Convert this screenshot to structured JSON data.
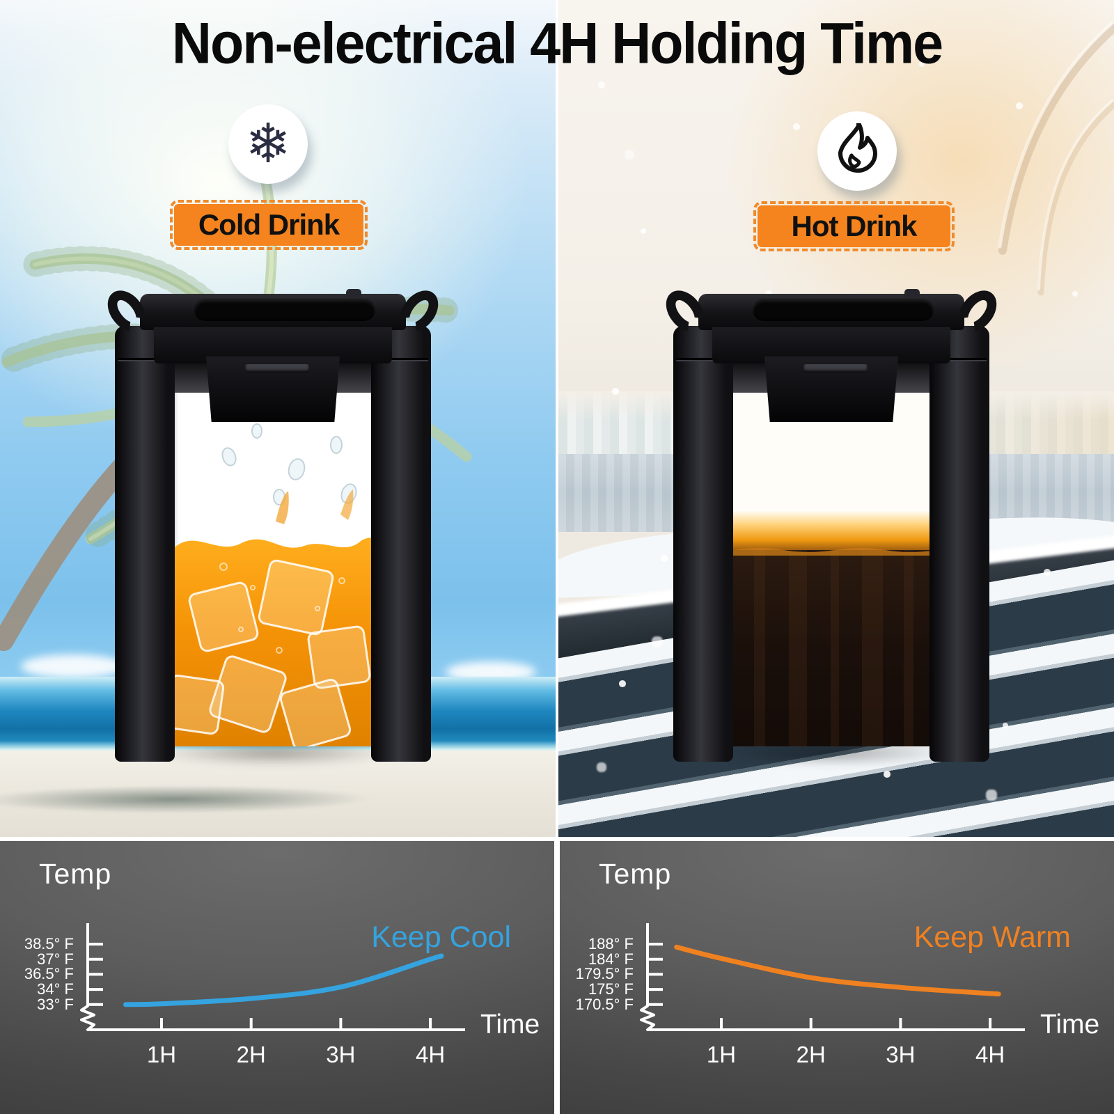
{
  "title": "Non-electrical 4H Holding Time",
  "cold_panel": {
    "badge": "Cold Drink",
    "icon": "snowflake-icon",
    "scene_accent": "#f5841e"
  },
  "hot_panel": {
    "badge": "Hot Drink",
    "icon": "flame-icon",
    "scene_accent": "#f5841e"
  },
  "colors": {
    "badge_orange": "#f5841e",
    "keep_cool_blue": "#35a3df",
    "keep_warm_orange": "#f08120",
    "snowflake_navy": "#2b2d42",
    "chart_bg_gray": "#555555",
    "axis_white": "#ffffff"
  },
  "chart_data": [
    {
      "type": "line",
      "title": "Temp",
      "xlabel": "Time",
      "x_ticks": [
        "1H",
        "2H",
        "3H",
        "4H"
      ],
      "y_ticks": [
        "38.5° F",
        "37° F",
        "36.5° F",
        "34° F",
        "33° F"
      ],
      "y_tick_values": [
        38.5,
        37,
        36.5,
        34,
        33
      ],
      "axis_break": true,
      "grid": false,
      "legend_position": "top-right",
      "series": [
        {
          "name": "Keep Cool",
          "color": "#35a3df",
          "points_hours_f": [
            [
              0.6,
              33.0
            ],
            [
              1,
              33.05
            ],
            [
              2,
              33.4
            ],
            [
              3,
              34.4
            ],
            [
              4,
              37.0
            ],
            [
              4.12,
              37.3
            ]
          ]
        }
      ]
    },
    {
      "type": "line",
      "title": "Temp",
      "xlabel": "Time",
      "x_ticks": [
        "1H",
        "2H",
        "3H",
        "4H"
      ],
      "y_ticks": [
        "188° F",
        "184° F",
        "179.5° F",
        "175° F",
        "170.5° F"
      ],
      "y_tick_values": [
        188,
        184,
        179.5,
        175,
        170.5
      ],
      "axis_break": true,
      "grid": false,
      "legend_position": "top-right",
      "series": [
        {
          "name": "Keep Warm",
          "color": "#f08120",
          "points_hours_f": [
            [
              0.5,
              187.2
            ],
            [
              1,
              184.2
            ],
            [
              2,
              178.5
            ],
            [
              3,
              175.6
            ],
            [
              4,
              173.8
            ],
            [
              4.06,
              173.7
            ]
          ]
        }
      ]
    }
  ]
}
